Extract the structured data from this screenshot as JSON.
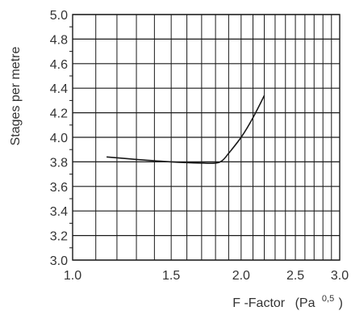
{
  "chart_data": {
    "type": "line",
    "title": "",
    "xlabel": "F -Factor",
    "xunit_base": "(Pa",
    "xunit_exp": "0,5",
    "xunit_close": ")",
    "ylabel": "Stages per metre",
    "xscale": "log",
    "xlim": [
      1.0,
      3.0
    ],
    "ylim": [
      3.0,
      5.0
    ],
    "grid": true,
    "x_ticks": [
      {
        "value": 1.0,
        "label": "1.0"
      },
      {
        "value": 1.5,
        "label": "1.5"
      },
      {
        "value": 2.0,
        "label": "2.0"
      },
      {
        "value": 2.5,
        "label": "2.5"
      },
      {
        "value": 3.0,
        "label": "3.0"
      }
    ],
    "x_grid": [
      1.1,
      1.2,
      1.3,
      1.4,
      1.5,
      1.6,
      1.7,
      1.8,
      1.9,
      2.0,
      2.1,
      2.2,
      2.3,
      2.4,
      2.5,
      2.6,
      2.7,
      2.8,
      2.9
    ],
    "y_ticks": [
      {
        "value": 3.0,
        "label": "3.0"
      },
      {
        "value": 3.2,
        "label": "3.2"
      },
      {
        "value": 3.4,
        "label": "3.4"
      },
      {
        "value": 3.6,
        "label": "3.6"
      },
      {
        "value": 3.8,
        "label": "3.8"
      },
      {
        "value": 4.0,
        "label": "4.0"
      },
      {
        "value": 4.2,
        "label": "4.2"
      },
      {
        "value": 4.4,
        "label": "4.4"
      },
      {
        "value": 4.6,
        "label": "4.6"
      },
      {
        "value": 4.8,
        "label": "4.8"
      },
      {
        "value": 5.0,
        "label": "5.0"
      }
    ],
    "y_minor_grid": [
      3.1,
      3.3,
      3.5,
      3.7,
      3.9,
      4.1,
      4.3,
      4.5,
      4.7,
      4.9
    ],
    "series": [
      {
        "x": [
          1.15,
          1.3,
          1.5,
          1.7,
          1.8,
          1.85,
          1.9,
          2.0,
          2.1,
          2.2
        ],
        "y": [
          3.84,
          3.82,
          3.8,
          3.79,
          3.79,
          3.81,
          3.87,
          4.0,
          4.16,
          4.34
        ]
      }
    ],
    "colors": {
      "line": "#1a1a1a",
      "grid": "#1a1a1a",
      "text": "#333333"
    }
  }
}
